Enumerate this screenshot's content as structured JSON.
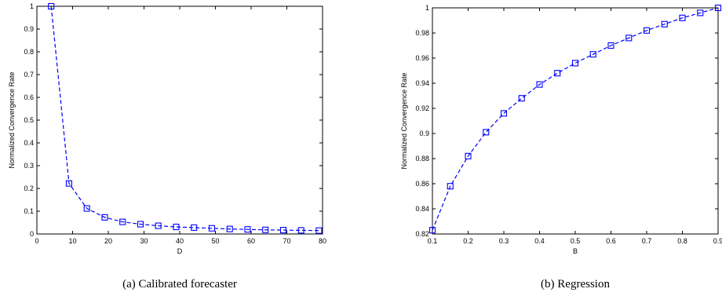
{
  "chart_data": [
    {
      "type": "line",
      "caption": "(a) Calibrated forecaster",
      "xlabel": "D",
      "ylabel": "Normalized Convergence Rate",
      "xlim": [
        0,
        80
      ],
      "ylim": [
        0,
        1
      ],
      "xticks": [
        0,
        10,
        20,
        30,
        40,
        50,
        60,
        70,
        80
      ],
      "yticks": [
        0,
        0.1,
        0.2,
        0.3,
        0.4,
        0.5,
        0.6,
        0.7,
        0.8,
        0.9,
        1
      ],
      "line_style": "dashed",
      "marker": "square",
      "series_color": "#0000ff",
      "x": [
        4,
        9,
        14,
        19,
        24,
        29,
        34,
        39,
        44,
        49,
        54,
        59,
        64,
        69,
        74,
        79
      ],
      "y": [
        1.0,
        0.222,
        0.112,
        0.073,
        0.053,
        0.043,
        0.036,
        0.031,
        0.028,
        0.025,
        0.022,
        0.02,
        0.018,
        0.017,
        0.016,
        0.015
      ]
    },
    {
      "type": "line",
      "caption": "(b) Regression",
      "xlabel": "B",
      "ylabel": "Normalized Convergence Rate",
      "xlim": [
        0.1,
        0.9
      ],
      "ylim": [
        0.82,
        1
      ],
      "xticks": [
        0.1,
        0.2,
        0.3,
        0.4,
        0.5,
        0.6,
        0.7,
        0.8,
        0.9
      ],
      "yticks": [
        0.82,
        0.84,
        0.86,
        0.88,
        0.9,
        0.92,
        0.94,
        0.96,
        0.98,
        1
      ],
      "line_style": "dashed",
      "marker": "square",
      "series_color": "#0000ff",
      "x": [
        0.1,
        0.15,
        0.2,
        0.25,
        0.3,
        0.35,
        0.4,
        0.45,
        0.5,
        0.55,
        0.6,
        0.65,
        0.7,
        0.75,
        0.8,
        0.85,
        0.9
      ],
      "y": [
        0.823,
        0.858,
        0.882,
        0.901,
        0.916,
        0.928,
        0.939,
        0.948,
        0.956,
        0.963,
        0.97,
        0.976,
        0.982,
        0.987,
        0.992,
        0.996,
        1.0
      ]
    }
  ]
}
